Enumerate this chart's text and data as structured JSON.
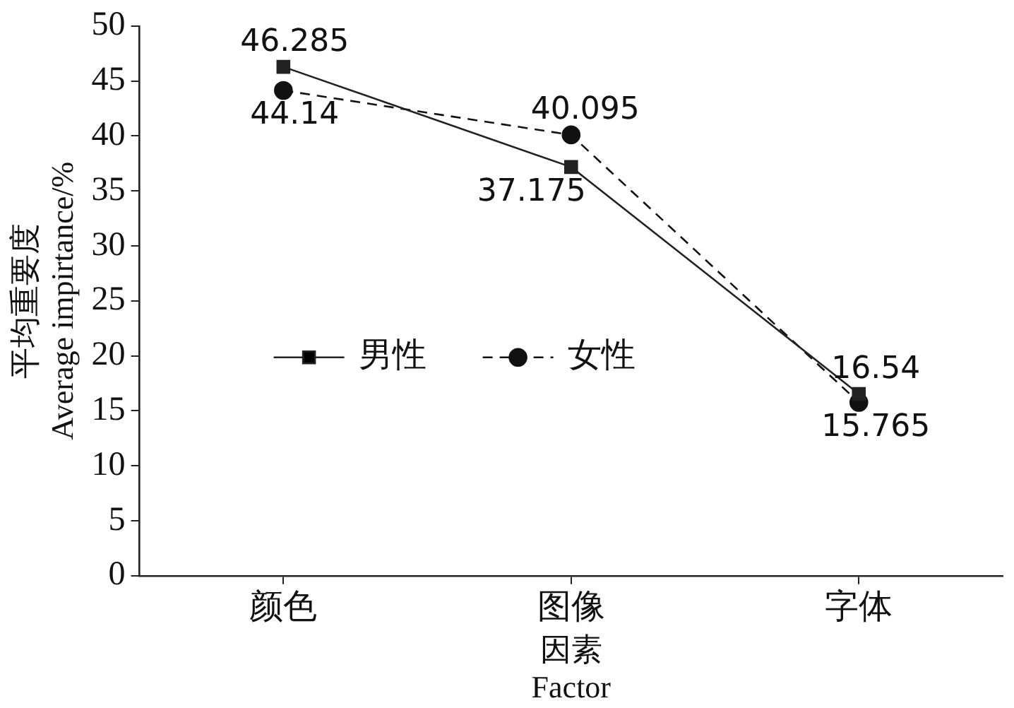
{
  "chart_data": {
    "type": "line",
    "xlabel": "因素\nFactor",
    "ylabel": "平均重要度\nAverage impirtance/%",
    "categories": [
      "颜色",
      "图像",
      "字体"
    ],
    "series": [
      {
        "name": "男性",
        "color": "#222222",
        "marker": "square",
        "line_style": "solid",
        "values": [
          46.285,
          37.175,
          16.54
        ]
      },
      {
        "name": "女性",
        "color": "#111111",
        "marker": "circle",
        "line_style": "dashed",
        "values": [
          44.14,
          40.095,
          15.765
        ]
      }
    ],
    "ylim": [
      0,
      50
    ],
    "yticks": [
      0,
      5,
      10,
      15,
      20,
      25,
      30,
      35,
      40,
      45,
      50
    ],
    "grid": false,
    "legend": "center left",
    "data_labels": true
  }
}
